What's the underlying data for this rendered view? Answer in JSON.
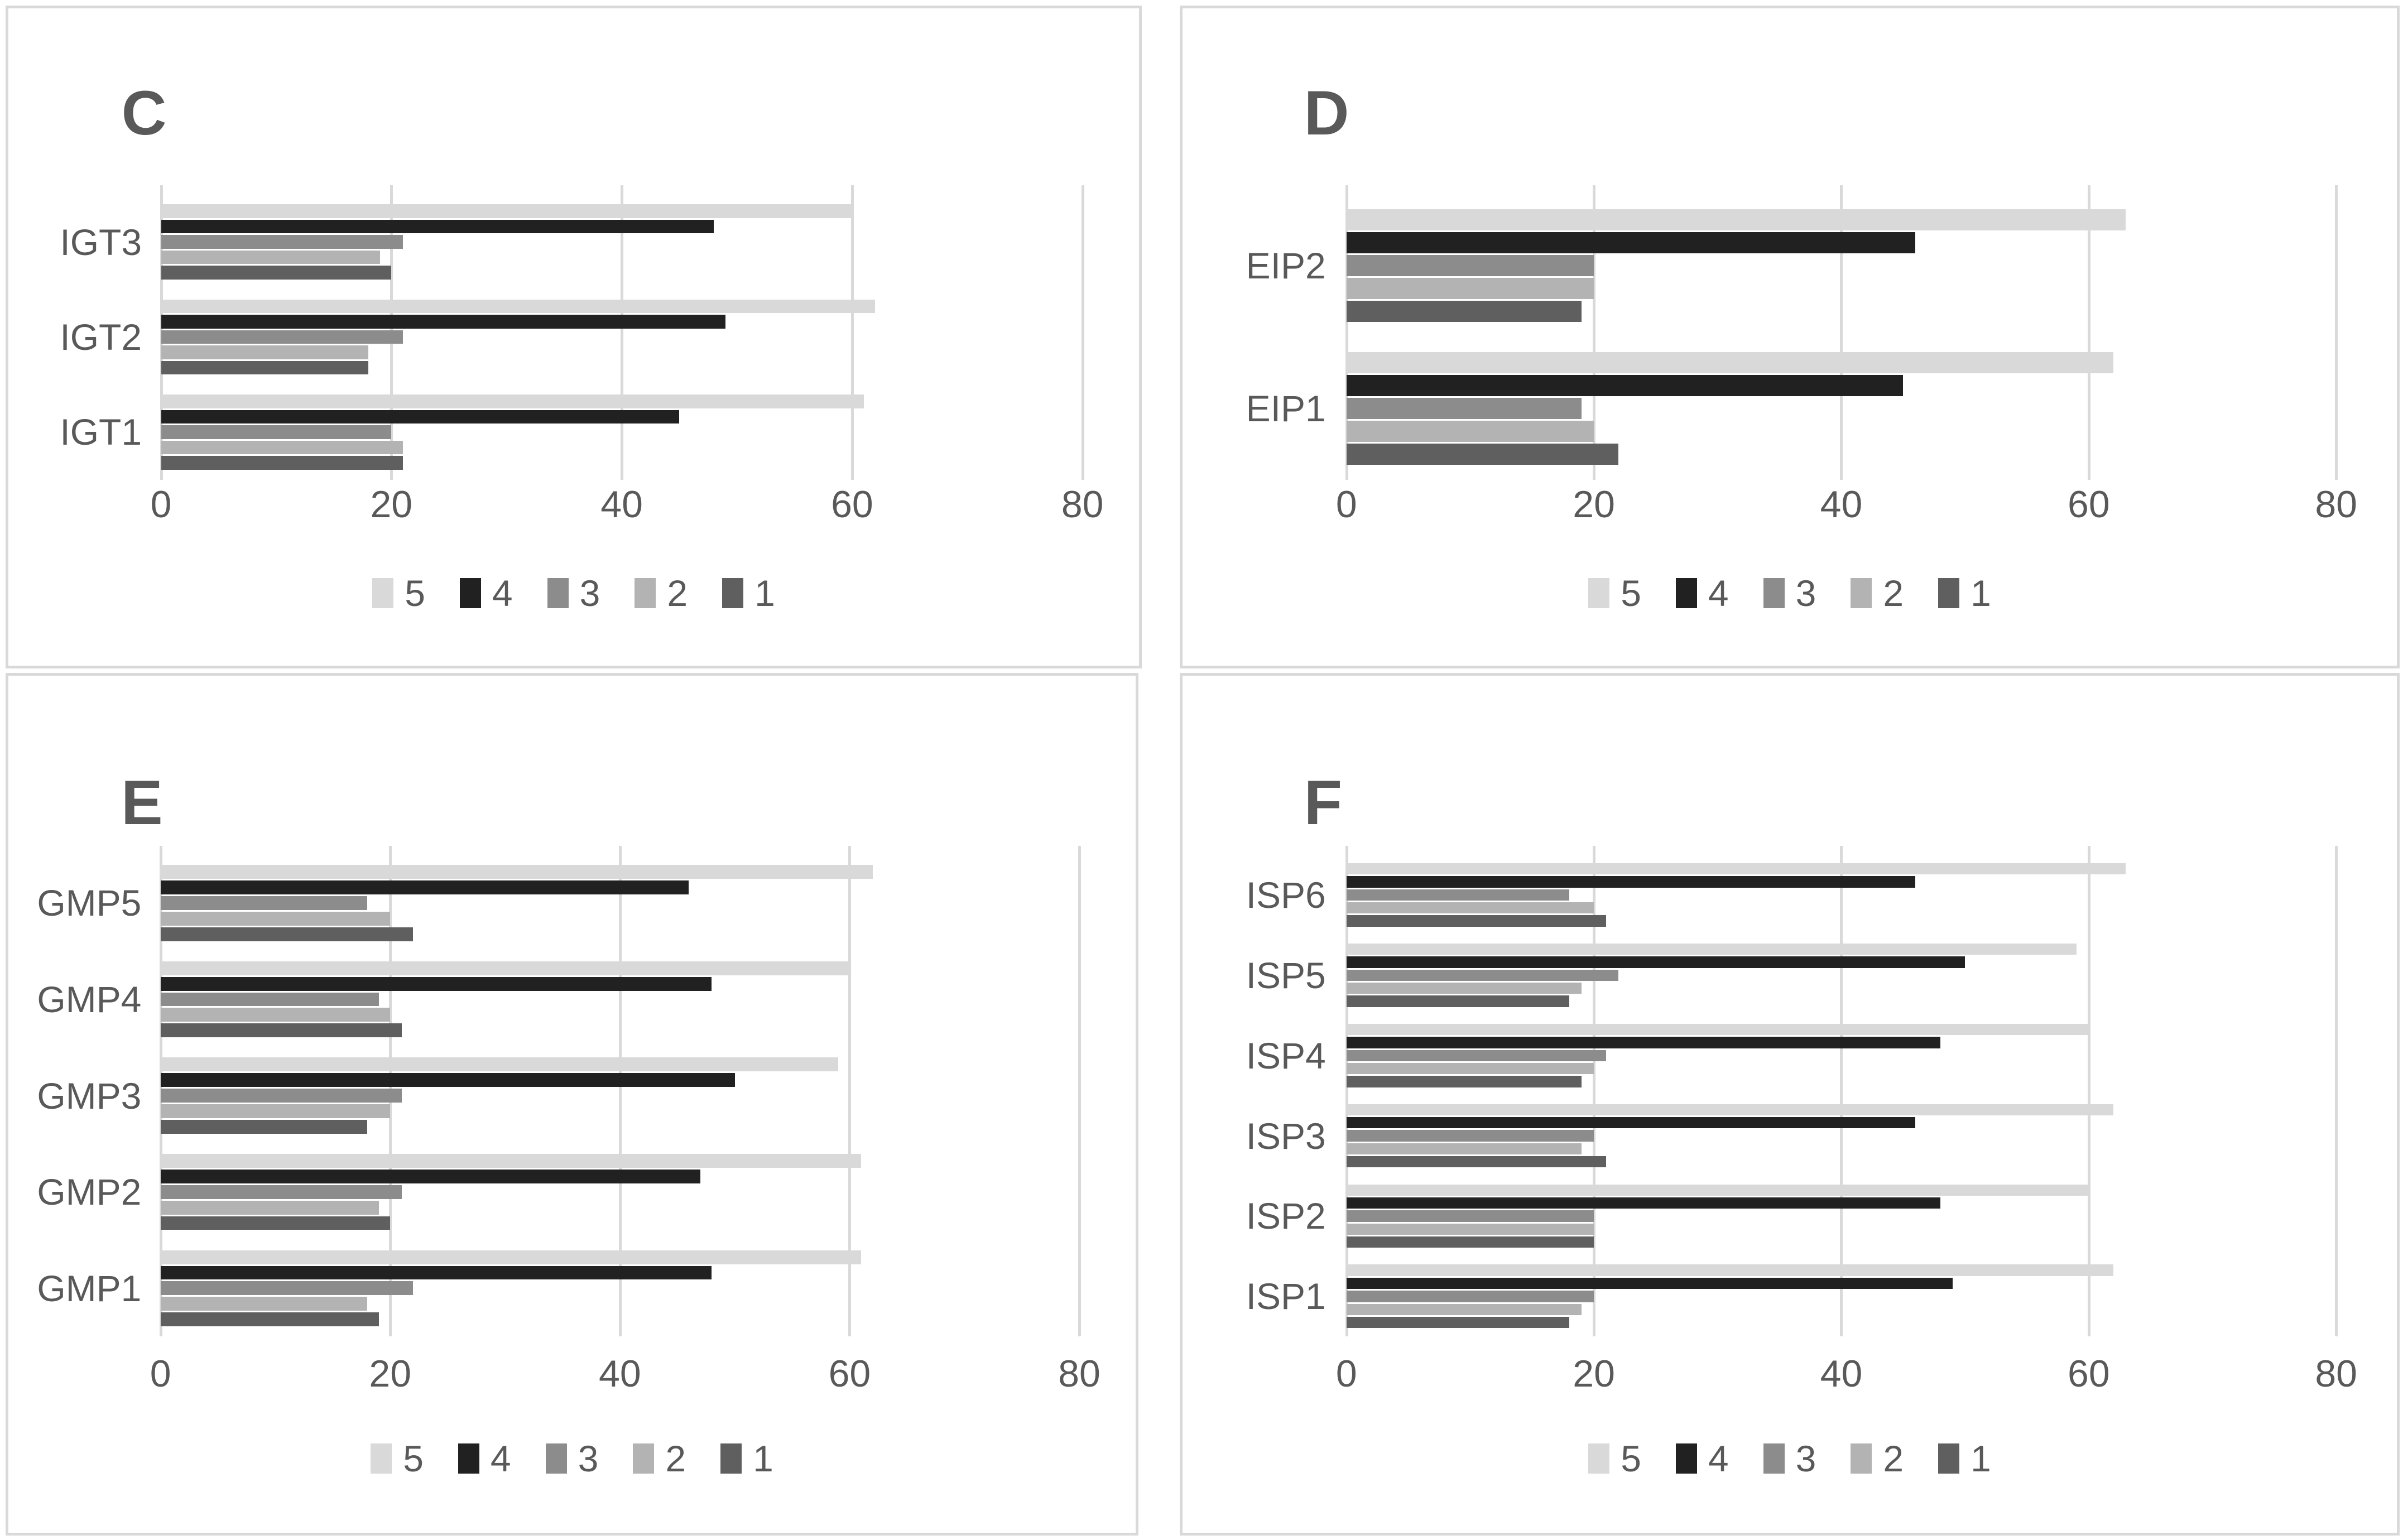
{
  "page": {
    "background": "#ffffff",
    "panel_border_color": "#d9d9d9",
    "text_color": "#595959",
    "gridline_color": "#d9d9d9"
  },
  "shared": {
    "x_ticks": [
      0,
      20,
      40,
      60,
      80
    ],
    "x_max": 80,
    "legend_position": "bottom",
    "legend": [
      {
        "label": "5",
        "color": "#d9d9d9"
      },
      {
        "label": "4",
        "color": "#212121"
      },
      {
        "label": "3",
        "color": "#8c8c8c"
      },
      {
        "label": "2",
        "color": "#b3b3b3"
      },
      {
        "label": "1",
        "color": "#5f5f5f"
      }
    ]
  },
  "chart_data": [
    {
      "id": "C",
      "title": "C",
      "type": "bar",
      "orientation": "horizontal",
      "xlim": [
        0,
        80
      ],
      "x_ticks": [
        0,
        20,
        40,
        60,
        80
      ],
      "grid": true,
      "categories": [
        "IGT3",
        "IGT2",
        "IGT1"
      ],
      "series": [
        {
          "name": "5",
          "values": [
            60,
            62,
            61
          ]
        },
        {
          "name": "4",
          "values": [
            48,
            49,
            45
          ]
        },
        {
          "name": "3",
          "values": [
            21,
            21,
            20
          ]
        },
        {
          "name": "2",
          "values": [
            19,
            18,
            21
          ]
        },
        {
          "name": "1",
          "values": [
            20,
            18,
            21
          ]
        }
      ]
    },
    {
      "id": "D",
      "title": "D",
      "type": "bar",
      "orientation": "horizontal",
      "xlim": [
        0,
        80
      ],
      "x_ticks": [
        0,
        20,
        40,
        60,
        80
      ],
      "grid": true,
      "categories": [
        "EIP2",
        "EIP1"
      ],
      "series": [
        {
          "name": "5",
          "values": [
            63,
            62
          ]
        },
        {
          "name": "4",
          "values": [
            46,
            45
          ]
        },
        {
          "name": "3",
          "values": [
            20,
            19
          ]
        },
        {
          "name": "2",
          "values": [
            20,
            20
          ]
        },
        {
          "name": "1",
          "values": [
            19,
            22
          ]
        }
      ]
    },
    {
      "id": "E",
      "title": "E",
      "type": "bar",
      "orientation": "horizontal",
      "xlim": [
        0,
        80
      ],
      "x_ticks": [
        0,
        20,
        40,
        60,
        80
      ],
      "grid": true,
      "categories": [
        "GMP5",
        "GMP4",
        "GMP3",
        "GMP2",
        "GMP1"
      ],
      "series": [
        {
          "name": "5",
          "values": [
            62,
            60,
            59,
            61,
            61
          ]
        },
        {
          "name": "4",
          "values": [
            46,
            48,
            50,
            47,
            48
          ]
        },
        {
          "name": "3",
          "values": [
            18,
            19,
            21,
            21,
            22
          ]
        },
        {
          "name": "2",
          "values": [
            20,
            20,
            20,
            19,
            18
          ]
        },
        {
          "name": "1",
          "values": [
            22,
            21,
            18,
            20,
            19
          ]
        }
      ]
    },
    {
      "id": "F",
      "title": "F",
      "type": "bar",
      "orientation": "horizontal",
      "xlim": [
        0,
        80
      ],
      "x_ticks": [
        0,
        20,
        40,
        60,
        80
      ],
      "grid": true,
      "categories": [
        "ISP6",
        "ISP5",
        "ISP4",
        "ISP3",
        "ISP2",
        "ISP1"
      ],
      "series": [
        {
          "name": "5",
          "values": [
            63,
            59,
            60,
            62,
            60,
            62
          ]
        },
        {
          "name": "4",
          "values": [
            46,
            50,
            48,
            46,
            48,
            49
          ]
        },
        {
          "name": "3",
          "values": [
            18,
            22,
            21,
            20,
            20,
            20
          ]
        },
        {
          "name": "2",
          "values": [
            20,
            19,
            20,
            19,
            20,
            19
          ]
        },
        {
          "name": "1",
          "values": [
            21,
            18,
            19,
            21,
            20,
            18
          ]
        }
      ]
    }
  ]
}
